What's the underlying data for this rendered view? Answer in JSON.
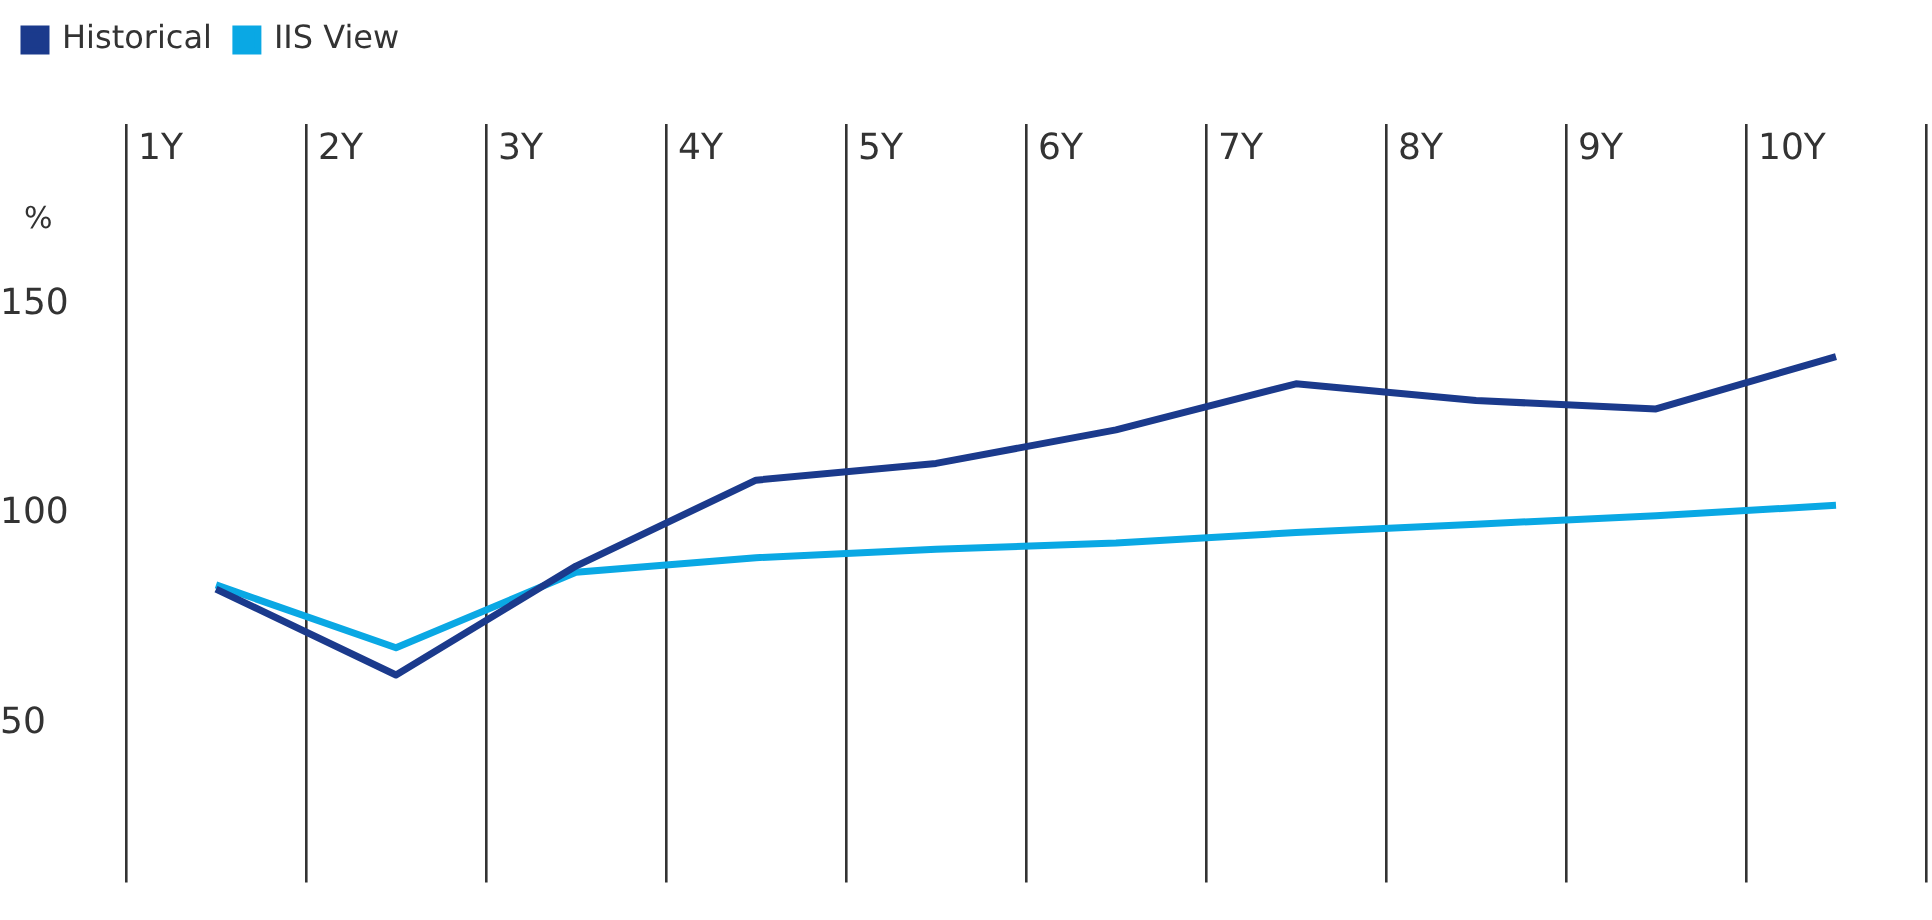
{
  "chart_data": {
    "type": "line",
    "ylabel": "%",
    "categories": [
      "1Y",
      "2Y",
      "3Y",
      "4Y",
      "5Y",
      "6Y",
      "7Y",
      "8Y",
      "9Y",
      "10Y"
    ],
    "series": [
      {
        "name": "Historical",
        "color": "#1b3a8c",
        "values": [
          82,
          61.5,
          87.5,
          108,
          112,
          120,
          131,
          127,
          125,
          137.5
        ]
      },
      {
        "name": "IIS View",
        "color": "#0aa8e4",
        "values": [
          83,
          68,
          86,
          89.5,
          91.5,
          93,
          95.5,
          97.5,
          99.5,
          102
        ]
      }
    ],
    "ylim": [
      12,
      193
    ],
    "yticks": [
      50,
      100,
      150
    ],
    "grid": "x",
    "legend": "top left",
    "marker": "none",
    "line_style": "solid"
  }
}
